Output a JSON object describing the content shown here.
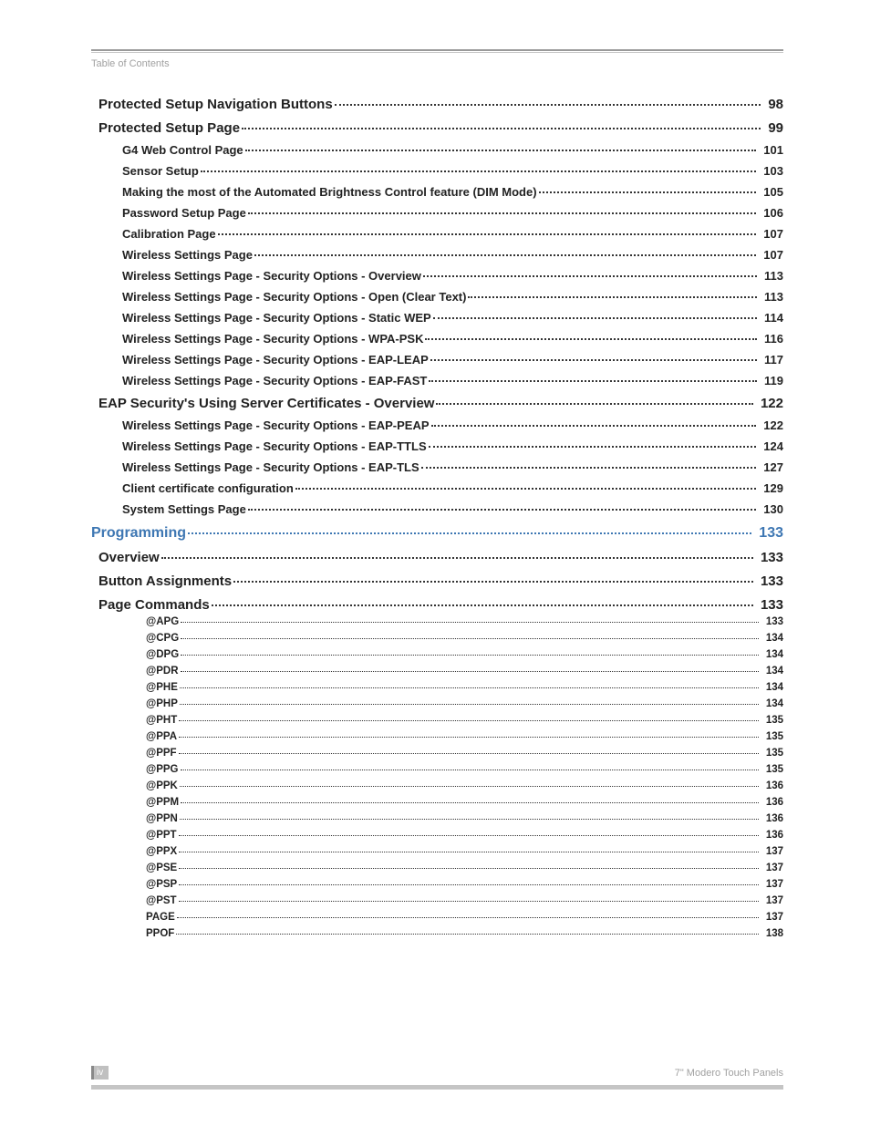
{
  "header": "Table of Contents",
  "footer_page": "iv",
  "footer_title": "7\" Modero Touch Panels",
  "colors": {
    "header_grey": "#a0a0a0",
    "rule_dark": "#9a9a9a",
    "rule_light": "#c5c5c5",
    "link_blue": "#3e77b3",
    "text": "#222222"
  },
  "entries": [
    {
      "level": 1,
      "title": "Protected Setup Navigation Buttons",
      "page": "98"
    },
    {
      "level": 1,
      "title": "Protected Setup Page",
      "page": "99"
    },
    {
      "level": 2,
      "title": "G4 Web Control Page",
      "page": "101"
    },
    {
      "level": 2,
      "title": "Sensor Setup",
      "page": "103"
    },
    {
      "level": 2,
      "title": "Making the most of the Automated Brightness Control feature (DIM Mode)",
      "page": "105"
    },
    {
      "level": 2,
      "title": "Password Setup Page",
      "page": "106"
    },
    {
      "level": 2,
      "title": "Calibration Page",
      "page": "107"
    },
    {
      "level": 2,
      "title": "Wireless Settings Page",
      "page": "107"
    },
    {
      "level": 2,
      "title": "Wireless Settings Page - Security Options - Overview",
      "page": "113"
    },
    {
      "level": 2,
      "title": "Wireless Settings Page - Security Options - Open (Clear Text)",
      "page": "113"
    },
    {
      "level": 2,
      "title": "Wireless Settings Page - Security Options - Static WEP",
      "page": "114"
    },
    {
      "level": 2,
      "title": "Wireless Settings Page - Security Options - WPA-PSK",
      "page": "116"
    },
    {
      "level": 2,
      "title": "Wireless Settings Page - Security Options - EAP-LEAP",
      "page": "117"
    },
    {
      "level": 2,
      "title": "Wireless Settings Page - Security Options - EAP-FAST",
      "page": "119"
    },
    {
      "level": 1,
      "title": "EAP Security's Using Server Certificates - Overview",
      "page": "122"
    },
    {
      "level": 2,
      "title": "Wireless Settings Page - Security Options - EAP-PEAP",
      "page": "122"
    },
    {
      "level": 2,
      "title": "Wireless Settings Page - Security Options - EAP-TTLS",
      "page": "124"
    },
    {
      "level": 2,
      "title": "Wireless Settings Page - Security Options - EAP-TLS",
      "page": "127"
    },
    {
      "level": 2,
      "title": "Client certificate configuration",
      "page": "129"
    },
    {
      "level": 2,
      "title": "System Settings Page",
      "page": "130"
    },
    {
      "level": "section",
      "title": "Programming",
      "page": "133"
    },
    {
      "level": 1,
      "title": "Overview",
      "page": "133"
    },
    {
      "level": 1,
      "title": "Button Assignments",
      "page": "133"
    },
    {
      "level": 1,
      "title": "Page Commands",
      "page": "133"
    },
    {
      "level": 3,
      "title": "@APG",
      "page": "133"
    },
    {
      "level": 3,
      "title": "@CPG",
      "page": "134"
    },
    {
      "level": 3,
      "title": "@DPG",
      "page": "134"
    },
    {
      "level": 3,
      "title": "@PDR",
      "page": "134"
    },
    {
      "level": 3,
      "title": "@PHE",
      "page": "134"
    },
    {
      "level": 3,
      "title": "@PHP",
      "page": "134"
    },
    {
      "level": 3,
      "title": "@PHT",
      "page": "135"
    },
    {
      "level": 3,
      "title": "@PPA",
      "page": "135"
    },
    {
      "level": 3,
      "title": "@PPF",
      "page": "135"
    },
    {
      "level": 3,
      "title": "@PPG",
      "page": "135"
    },
    {
      "level": 3,
      "title": "@PPK",
      "page": "136"
    },
    {
      "level": 3,
      "title": "@PPM",
      "page": "136"
    },
    {
      "level": 3,
      "title": "@PPN",
      "page": "136"
    },
    {
      "level": 3,
      "title": "@PPT",
      "page": "136"
    },
    {
      "level": 3,
      "title": "@PPX",
      "page": "137"
    },
    {
      "level": 3,
      "title": "@PSE",
      "page": "137"
    },
    {
      "level": 3,
      "title": "@PSP",
      "page": "137"
    },
    {
      "level": 3,
      "title": "@PST",
      "page": "137"
    },
    {
      "level": 3,
      "title": "PAGE",
      "page": "137"
    },
    {
      "level": 3,
      "title": "PPOF",
      "page": "138"
    }
  ]
}
